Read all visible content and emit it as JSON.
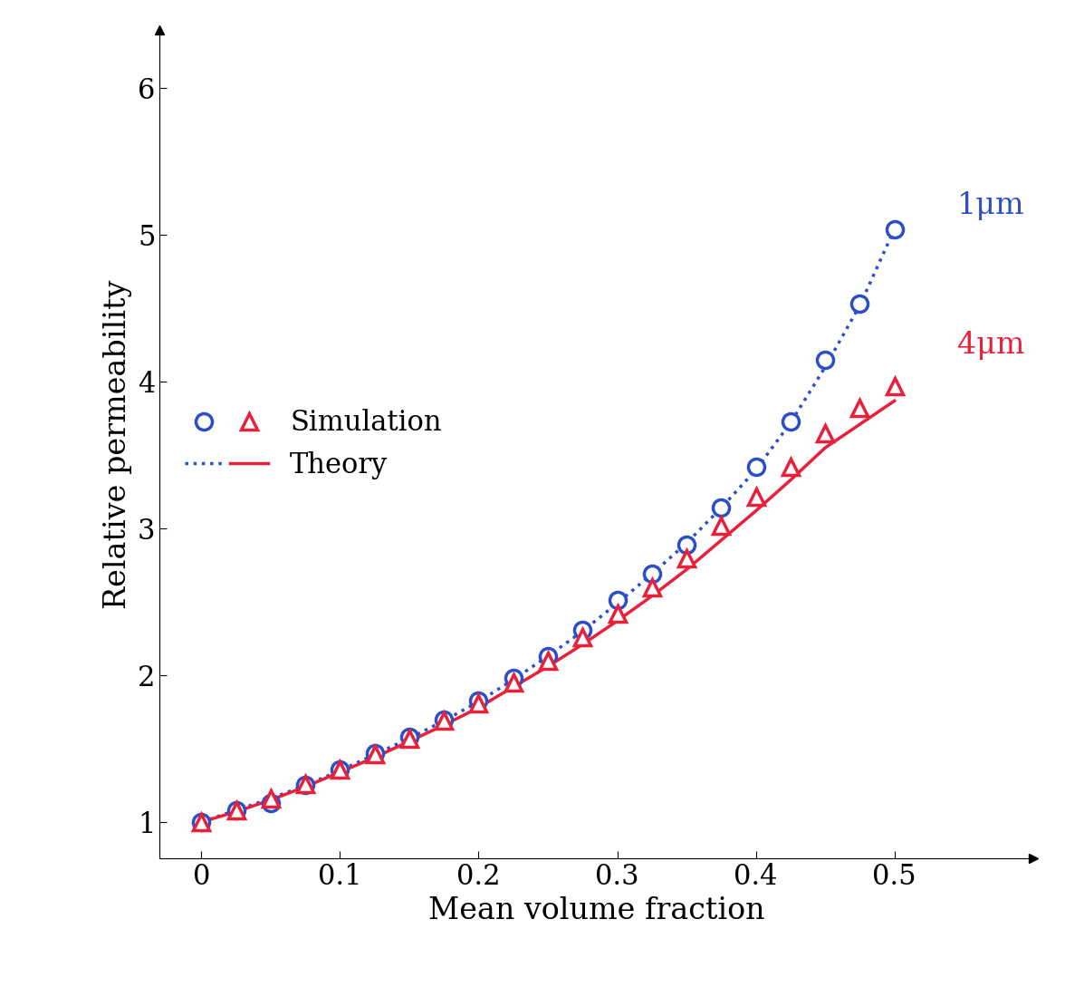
{
  "chart_data": {
    "type": "line",
    "x_label": "Mean volume fraction",
    "y_label": "Relative permeability",
    "xlim": [
      -0.03,
      0.6
    ],
    "ylim": [
      0.75,
      6.4
    ],
    "xticks": [
      0,
      0.1,
      0.2,
      0.3,
      0.4,
      0.5
    ],
    "yticks": [
      1,
      2,
      3,
      4,
      5,
      6
    ],
    "grid": false,
    "legend": "center left",
    "legend_labels": [
      "Simulation",
      "Theory"
    ],
    "x": [
      0,
      0.025,
      0.05,
      0.075,
      0.1,
      0.125,
      0.15,
      0.175,
      0.2,
      0.225,
      0.25,
      0.275,
      0.3,
      0.325,
      0.35,
      0.375,
      0.4,
      0.425,
      0.45,
      0.475,
      0.5
    ],
    "series": [
      {
        "name": "1μm",
        "color": "#2c4fc8",
        "marker": "circle",
        "line_style": "dotted",
        "simulation": [
          1.0,
          1.08,
          1.13,
          1.25,
          1.36,
          1.47,
          1.58,
          1.7,
          1.83,
          1.98,
          2.13,
          2.31,
          2.51,
          2.69,
          2.89,
          3.14,
          3.42,
          3.73,
          4.15,
          4.53,
          5.04
        ],
        "theory": [
          1.0,
          1.08,
          1.16,
          1.25,
          1.35,
          1.46,
          1.57,
          1.69,
          1.82,
          1.97,
          2.13,
          2.3,
          2.49,
          2.69,
          2.9,
          3.14,
          3.4,
          3.72,
          4.1,
          4.52,
          5.04
        ],
        "label_position": [
          0.545,
          5.2
        ]
      },
      {
        "name": "4μm",
        "color": "#e8203a",
        "marker": "triangle",
        "line_style": "solid",
        "simulation": [
          1.0,
          1.08,
          1.16,
          1.26,
          1.36,
          1.46,
          1.57,
          1.69,
          1.81,
          1.95,
          2.1,
          2.26,
          2.42,
          2.6,
          2.8,
          3.02,
          3.22,
          3.42,
          3.65,
          3.82,
          3.97
        ],
        "theory": [
          1.0,
          1.07,
          1.15,
          1.24,
          1.34,
          1.44,
          1.55,
          1.66,
          1.78,
          1.92,
          2.06,
          2.21,
          2.37,
          2.54,
          2.72,
          2.92,
          3.12,
          3.33,
          3.55,
          3.71,
          3.87
        ],
        "label_position": [
          0.545,
          4.25
        ]
      }
    ]
  }
}
